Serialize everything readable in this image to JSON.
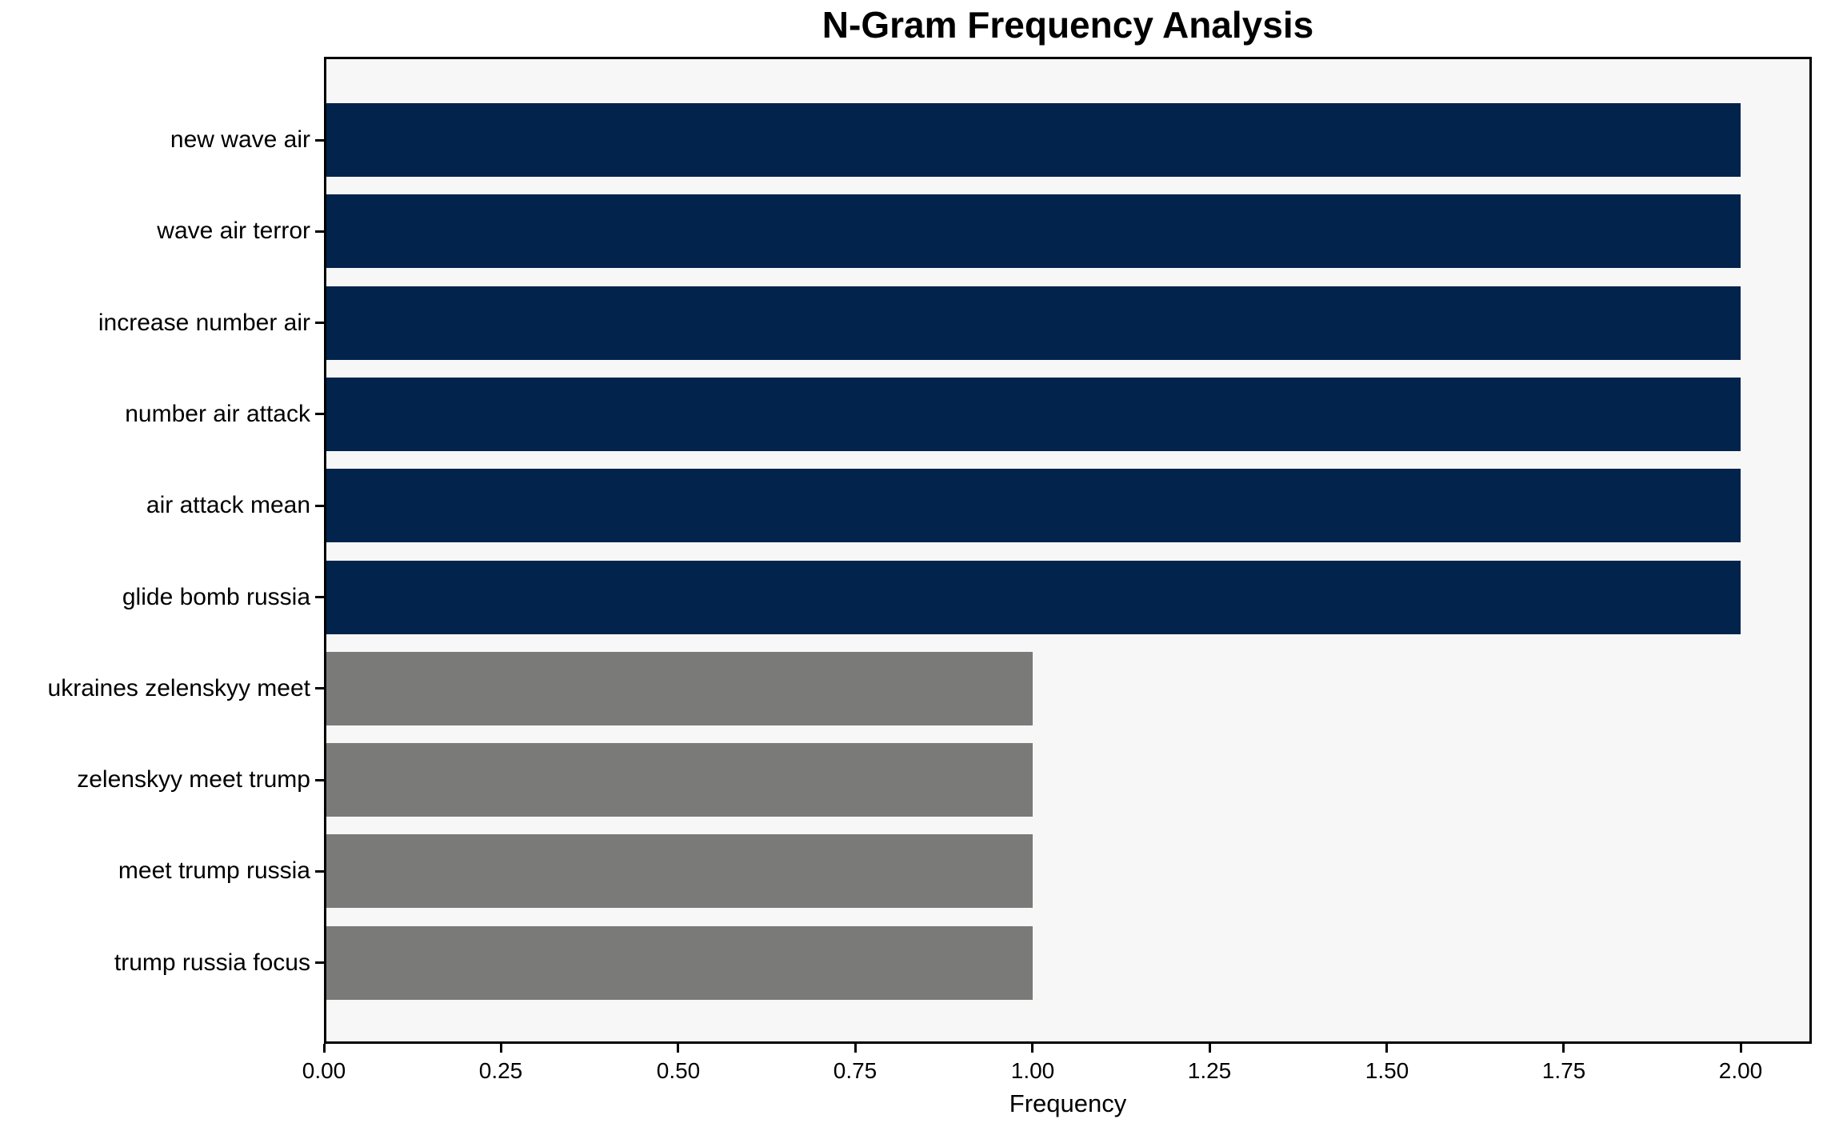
{
  "chart_data": {
    "type": "bar",
    "orientation": "horizontal",
    "title": "N-Gram Frequency Analysis",
    "xlabel": "Frequency",
    "ylabel": "",
    "categories": [
      "new wave air",
      "wave air terror",
      "increase number air",
      "number air attack",
      "air attack mean",
      "glide bomb russia",
      "ukraines zelenskyy meet",
      "zelenskyy meet trump",
      "meet trump russia",
      "trump russia focus"
    ],
    "values": [
      2,
      2,
      2,
      2,
      2,
      2,
      1,
      1,
      1,
      1
    ],
    "bar_colors": [
      "#02234c",
      "#02234c",
      "#02234c",
      "#02234c",
      "#02234c",
      "#02234c",
      "#7a7a78",
      "#7a7a78",
      "#7a7a78",
      "#7a7a78"
    ],
    "xlim": [
      0,
      2.1
    ],
    "x_tick_values": [
      0,
      0.25,
      0.5,
      0.75,
      1.0,
      1.25,
      1.5,
      1.75,
      2.0
    ],
    "x_tick_labels": [
      "0.00",
      "0.25",
      "0.50",
      "0.75",
      "1.00",
      "1.25",
      "1.50",
      "1.75",
      "2.00"
    ],
    "grid": false,
    "legend": null,
    "colors": {
      "high_frequency_bar": "#02234c",
      "low_frequency_bar": "#7a7a78",
      "plot_background": "#f7f7f7",
      "figure_background": "#ffffff",
      "axis_spine": "#000000",
      "text": "#000000"
    }
  }
}
